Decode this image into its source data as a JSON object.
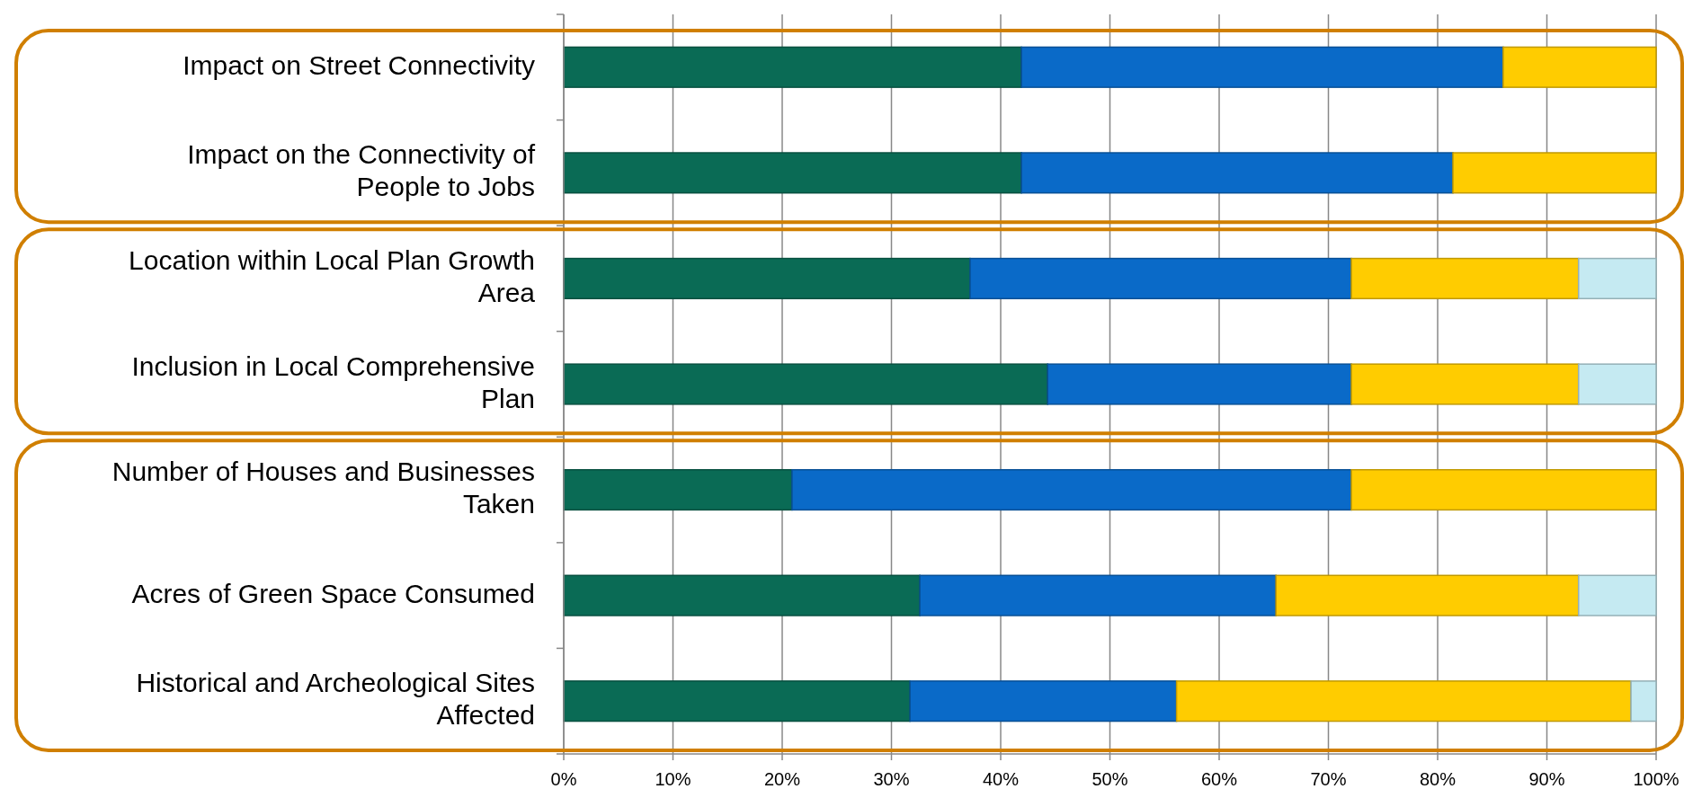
{
  "chart_data": {
    "type": "bar",
    "orientation": "horizontal",
    "stacked": true,
    "categories": [
      "Impact on Street Connectivity",
      "Impact on the Connectivity of People to Jobs",
      "Location within Local Plan Growth Area",
      "Inclusion in Local Comprehensive Plan",
      "Number of Houses and Businesses Taken",
      "Acres of Green Space Consumed",
      "Historical and Archeological Sites Affected"
    ],
    "series": [
      {
        "color": "#0a6b55",
        "values": [
          41.9,
          41.9,
          37.2,
          44.3,
          20.9,
          32.6,
          31.7
        ]
      },
      {
        "color": "#0a6ac8",
        "values": [
          44.1,
          39.5,
          34.9,
          27.8,
          51.2,
          32.6,
          24.4
        ]
      },
      {
        "color": "#ffcc00",
        "values": [
          14.0,
          18.6,
          20.8,
          20.8,
          27.9,
          27.7,
          41.6
        ]
      },
      {
        "color": "#c5eaf2",
        "values": [
          0,
          0,
          7.1,
          7.1,
          0,
          7.1,
          2.3
        ]
      }
    ],
    "xlim": [
      0,
      100
    ],
    "xticks": [
      {
        "value": 0,
        "label": "0%"
      },
      {
        "value": 10,
        "label": "10%"
      },
      {
        "value": 20,
        "label": "20%"
      },
      {
        "value": 30,
        "label": "30%"
      },
      {
        "value": 40,
        "label": "40%"
      },
      {
        "value": 50,
        "label": "50%"
      },
      {
        "value": 60,
        "label": "60%"
      },
      {
        "value": 70,
        "label": "70%"
      },
      {
        "value": 80,
        "label": "80%"
      },
      {
        "value": 90,
        "label": "90%"
      },
      {
        "value": 100,
        "label": "100%"
      }
    ],
    "grid": "x"
  }
}
